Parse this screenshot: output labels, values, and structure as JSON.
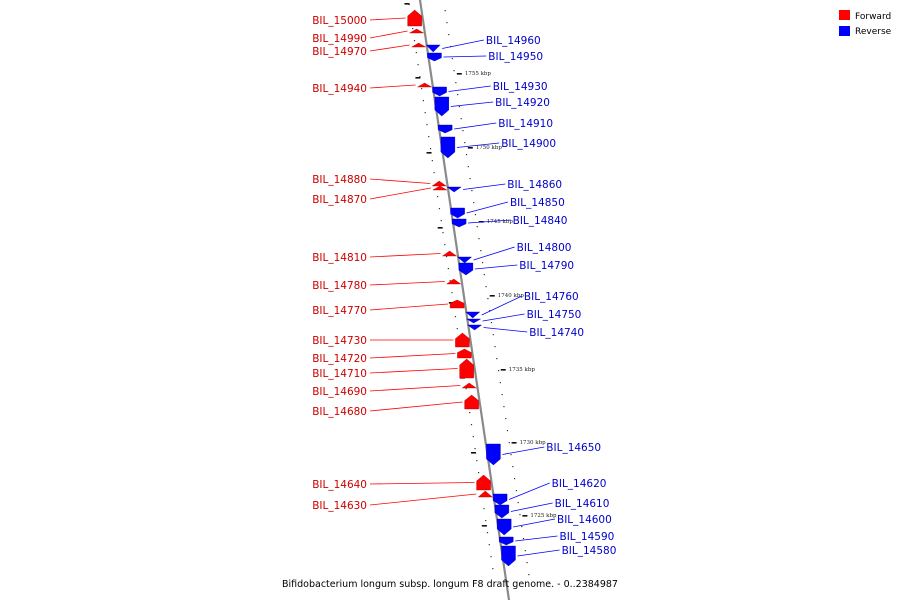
{
  "caption": "Bifidobacterium longum subsp. longum F8 draft genome. - 0..2384987",
  "legend": [
    {
      "label": "Forward",
      "color": "#ff0000"
    },
    {
      "label": "Reverse",
      "color": "#0000ff"
    }
  ],
  "colors": {
    "forward": "#ff0000",
    "reverse": "#0000ff",
    "backbone": "#888888"
  },
  "tick_labels": [
    "1755 kbp",
    "1750 kbp",
    "1745 kbp",
    "1740 kbp",
    "1735 kbp",
    "1730 kbp",
    "1725 kbp"
  ],
  "forward_genes": [
    "BIL_15000",
    "BIL_14990",
    "BIL_14970",
    "BIL_14940",
    "BIL_14880",
    "BIL_14870",
    "BIL_14810",
    "BIL_14780",
    "BIL_14770",
    "BIL_14730",
    "BIL_14720",
    "BIL_14710",
    "BIL_14690",
    "BIL_14680",
    "BIL_14640",
    "BIL_14630"
  ],
  "reverse_genes": [
    "BIL_14960",
    "BIL_14950",
    "BIL_14930",
    "BIL_14920",
    "BIL_14910",
    "BIL_14900",
    "BIL_14860",
    "BIL_14850",
    "BIL_14840",
    "BIL_14800",
    "BIL_14790",
    "BIL_14760",
    "BIL_14750",
    "BIL_14740",
    "BIL_14650",
    "BIL_14620",
    "BIL_14610",
    "BIL_14600",
    "BIL_14590",
    "BIL_14580"
  ]
}
